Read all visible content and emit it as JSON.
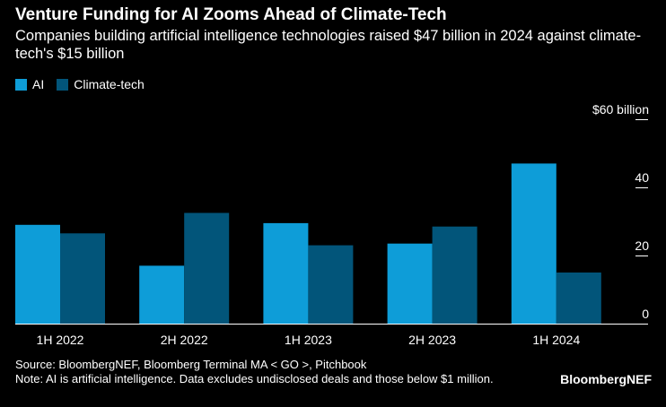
{
  "header": {
    "title": "Venture Funding for AI Zooms Ahead of Climate-Tech",
    "subtitle": "Companies building artificial intelligence technologies raised $47 billion in 2024 against climate-tech's $15 billion"
  },
  "legend": {
    "items": [
      {
        "label": "AI",
        "color": "#0E9DD8"
      },
      {
        "label": "Climate-tech",
        "color": "#02557A"
      }
    ]
  },
  "footer": {
    "source": "Source: BloombergNEF, Bloomberg Terminal MA < GO >, Pitchbook",
    "note": "Note: AI is artificial intelligence. Data excludes undisclosed deals and those below $1 million.",
    "brand": "BloombergNEF"
  },
  "chart_data": {
    "type": "bar",
    "categories": [
      "1H 2022",
      "2H 2022",
      "1H 2023",
      "2H 2023",
      "1H 2024"
    ],
    "series": [
      {
        "name": "AI",
        "values": [
          29,
          17,
          29.5,
          23.5,
          47
        ],
        "color": "#0E9DD8"
      },
      {
        "name": "Climate-tech",
        "values": [
          26.5,
          32.5,
          23,
          28.5,
          15
        ],
        "color": "#02557A"
      }
    ],
    "yticks": [
      {
        "value": 0,
        "label": "0"
      },
      {
        "value": 20,
        "label": "20"
      },
      {
        "value": 40,
        "label": "40"
      },
      {
        "value": 60,
        "label": "$60 billion"
      }
    ],
    "ylim": [
      0,
      60
    ],
    "grid": false,
    "legend_position": "top-left"
  }
}
